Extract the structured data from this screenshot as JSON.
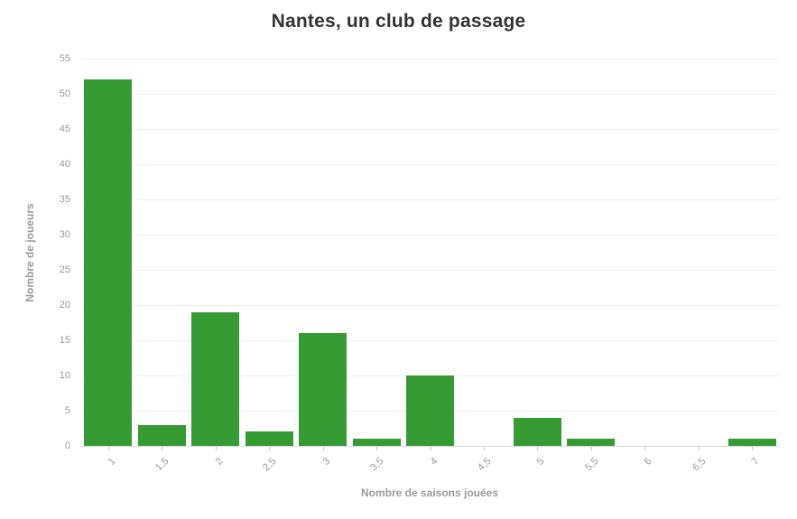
{
  "chart_data": {
    "type": "bar",
    "title": "Nantes, un club de passage",
    "xlabel": "Nombre de saisons jouées",
    "ylabel": "Nombre de joueurs",
    "categories": [
      "1",
      "1,5",
      "2",
      "2,5",
      "3",
      "3,5",
      "4",
      "4,5",
      "5",
      "5,5",
      "6",
      "6,5",
      "7"
    ],
    "values": [
      52,
      3,
      19,
      2,
      16,
      1,
      10,
      0,
      4,
      1,
      0,
      0,
      1
    ],
    "ylim": [
      0,
      55
    ],
    "ytick_step": 5,
    "grid": true,
    "legend_position": "none"
  },
  "colors": {
    "bar": "#379b33",
    "title": "#333333",
    "axis_title": "#9b9b9b",
    "tick_label": "#999999",
    "gridline": "#f0f0f0",
    "axis_line": "#d9d9d9",
    "tick_mark": "#cccccc",
    "background": "#ffffff"
  }
}
